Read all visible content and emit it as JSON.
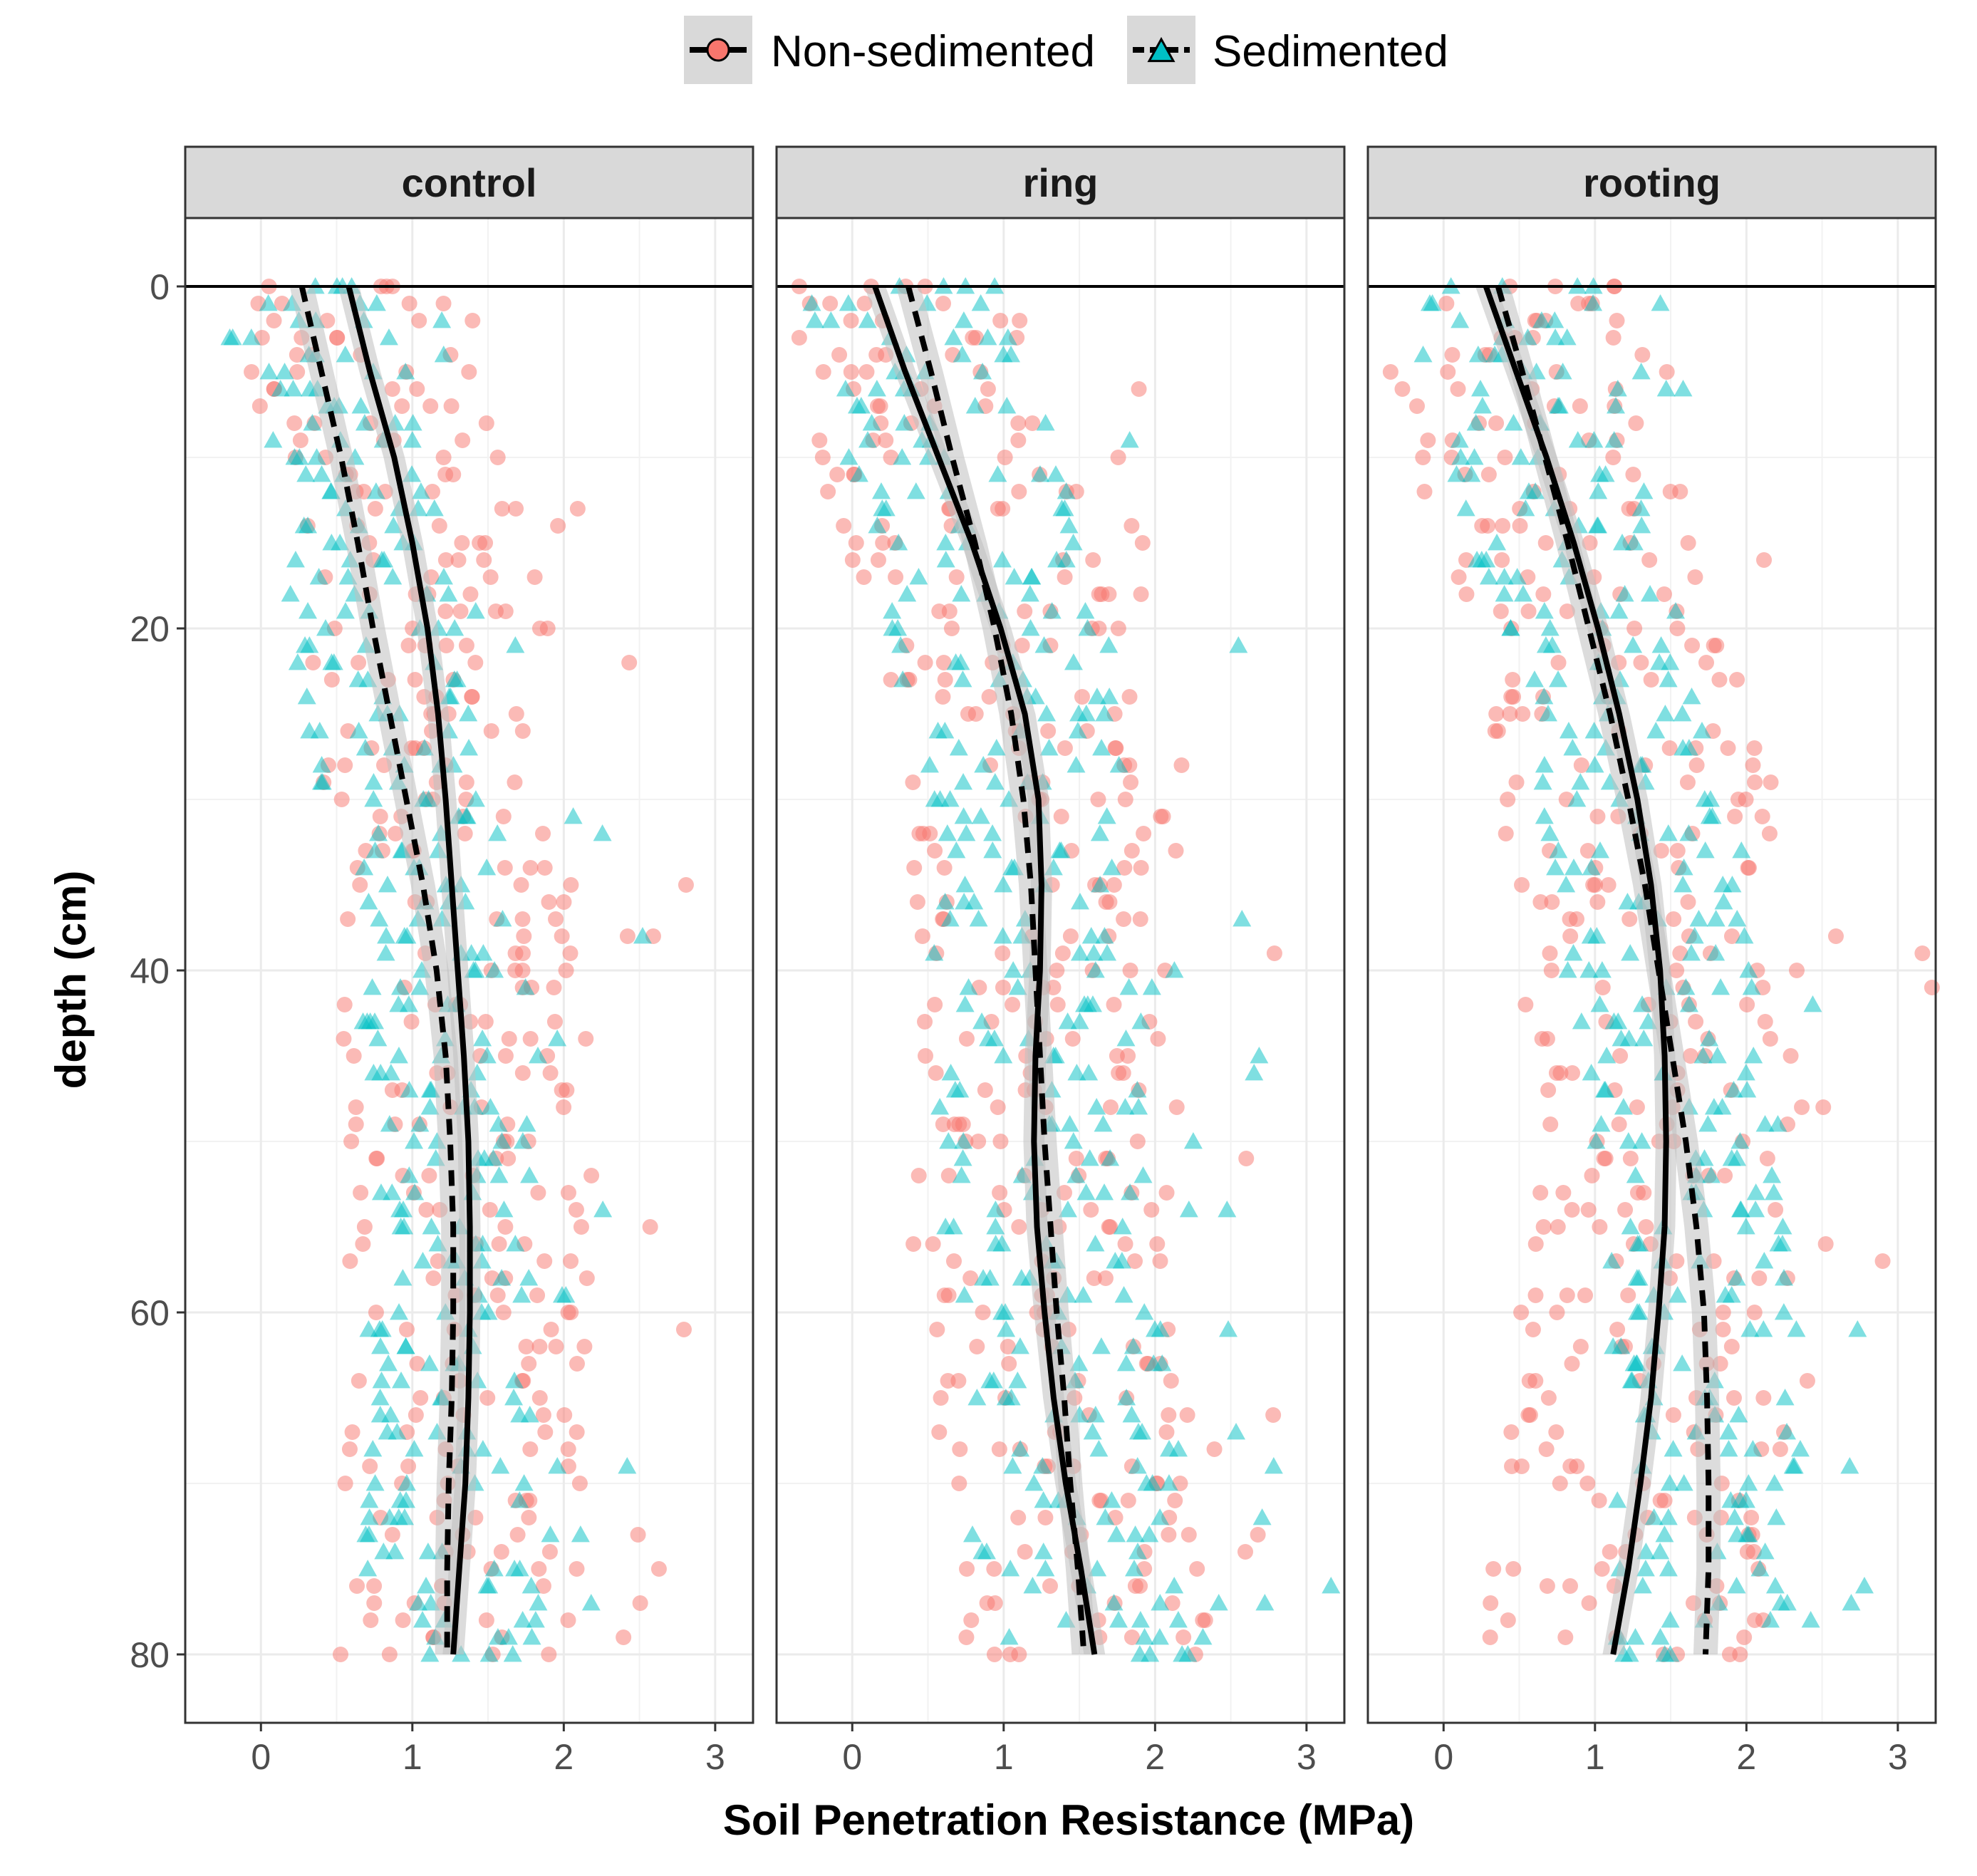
{
  "chart_data": {
    "type": "scatter",
    "facet_variable": "treatment",
    "facets": [
      {
        "label": "control",
        "sediment_band": [
          0.25,
          0.8
        ],
        "non_sediment_band": [
          0.6,
          1.15
        ],
        "series": [
          {
            "name": "Non-sedimented",
            "curve": [
              [
                0,
                0.58
              ],
              [
                5,
                0.72
              ],
              [
                10,
                0.88
              ],
              [
                15,
                1.0
              ],
              [
                20,
                1.1
              ],
              [
                25,
                1.17
              ],
              [
                30,
                1.22
              ],
              [
                35,
                1.26
              ],
              [
                40,
                1.3
              ],
              [
                45,
                1.34
              ],
              [
                50,
                1.37
              ],
              [
                55,
                1.38
              ],
              [
                60,
                1.38
              ],
              [
                65,
                1.37
              ],
              [
                70,
                1.35
              ],
              [
                75,
                1.31
              ],
              [
                80,
                1.27
              ]
            ]
          },
          {
            "name": "Sedimented",
            "curve": [
              [
                0,
                0.27
              ],
              [
                5,
                0.4
              ],
              [
                10,
                0.53
              ],
              [
                15,
                0.64
              ],
              [
                20,
                0.74
              ],
              [
                25,
                0.85
              ],
              [
                30,
                0.96
              ],
              [
                35,
                1.07
              ],
              [
                40,
                1.16
              ],
              [
                45,
                1.22
              ],
              [
                50,
                1.25
              ],
              [
                55,
                1.27
              ],
              [
                60,
                1.27
              ],
              [
                65,
                1.26
              ],
              [
                70,
                1.24
              ],
              [
                75,
                1.23
              ],
              [
                80,
                1.23
              ]
            ]
          }
        ]
      },
      {
        "label": "ring",
        "sediment_band": [
          0.4,
          1.0
        ],
        "non_sediment_band": [
          0.5,
          1.2
        ],
        "series": [
          {
            "name": "Non-sedimented",
            "curve": [
              [
                0,
                0.15
              ],
              [
                5,
                0.35
              ],
              [
                10,
                0.57
              ],
              [
                15,
                0.79
              ],
              [
                20,
                0.98
              ],
              [
                25,
                1.14
              ],
              [
                30,
                1.23
              ],
              [
                35,
                1.25
              ],
              [
                40,
                1.24
              ],
              [
                45,
                1.21
              ],
              [
                50,
                1.2
              ],
              [
                55,
                1.22
              ],
              [
                60,
                1.27
              ],
              [
                65,
                1.33
              ],
              [
                70,
                1.41
              ],
              [
                75,
                1.51
              ],
              [
                80,
                1.6
              ]
            ]
          },
          {
            "name": "Sedimented",
            "curve": [
              [
                0,
                0.37
              ],
              [
                5,
                0.52
              ],
              [
                10,
                0.66
              ],
              [
                15,
                0.81
              ],
              [
                20,
                0.94
              ],
              [
                25,
                1.05
              ],
              [
                30,
                1.13
              ],
              [
                35,
                1.18
              ],
              [
                40,
                1.21
              ],
              [
                45,
                1.24
              ],
              [
                50,
                1.27
              ],
              [
                55,
                1.31
              ],
              [
                60,
                1.35
              ],
              [
                65,
                1.4
              ],
              [
                70,
                1.44
              ],
              [
                75,
                1.49
              ],
              [
                80,
                1.53
              ]
            ]
          }
        ]
      },
      {
        "label": "rooting",
        "sediment_band": [
          0.2,
          0.9
        ],
        "non_sediment_band": [
          0.3,
          1.3
        ],
        "series": [
          {
            "name": "Non-sedimented",
            "curve": [
              [
                0,
                0.28
              ],
              [
                5,
                0.48
              ],
              [
                10,
                0.68
              ],
              [
                15,
                0.86
              ],
              [
                20,
                1.02
              ],
              [
                25,
                1.16
              ],
              [
                30,
                1.28
              ],
              [
                35,
                1.37
              ],
              [
                40,
                1.43
              ],
              [
                45,
                1.46
              ],
              [
                50,
                1.47
              ],
              [
                55,
                1.46
              ],
              [
                60,
                1.42
              ],
              [
                65,
                1.37
              ],
              [
                70,
                1.3
              ],
              [
                75,
                1.22
              ],
              [
                80,
                1.12
              ]
            ]
          },
          {
            "name": "Sedimented",
            "curve": [
              [
                0,
                0.36
              ],
              [
                5,
                0.52
              ],
              [
                10,
                0.67
              ],
              [
                15,
                0.82
              ],
              [
                20,
                0.96
              ],
              [
                25,
                1.1
              ],
              [
                30,
                1.22
              ],
              [
                35,
                1.33
              ],
              [
                40,
                1.42
              ],
              [
                45,
                1.51
              ],
              [
                50,
                1.6
              ],
              [
                55,
                1.67
              ],
              [
                60,
                1.72
              ],
              [
                65,
                1.74
              ],
              [
                70,
                1.75
              ],
              [
                75,
                1.75
              ],
              [
                80,
                1.73
              ]
            ]
          }
        ]
      }
    ],
    "legend": [
      {
        "label": "Non-sedimented",
        "color": "#F8766D",
        "marker": "circle",
        "line": "solid"
      },
      {
        "label": "Sedimented",
        "color": "#00BFC4",
        "marker": "triangle",
        "line": "dashed"
      }
    ],
    "legend_position": "top",
    "xlabel": "Soil Penetration Resistance (MPa)",
    "ylabel": "depth (cm)",
    "xlim": [
      -0.5,
      3.25
    ],
    "ylim": [
      84,
      -4
    ],
    "x_ticks": [
      "0",
      "1",
      "2",
      "3"
    ],
    "x_tick_values": [
      0,
      1,
      2,
      3
    ],
    "y_ticks": [
      "0",
      "20",
      "40",
      "60",
      "80"
    ],
    "y_tick_values": [
      0,
      20,
      40,
      60,
      80
    ],
    "reference_line_depth": 0,
    "grid": true,
    "colors": {
      "non_sedimented": "#F8766D",
      "sedimented": "#00BFC4",
      "fit_line": "#000000",
      "confidence_band": "#bfbfbf",
      "strip_fill": "#d9d9d9"
    }
  }
}
